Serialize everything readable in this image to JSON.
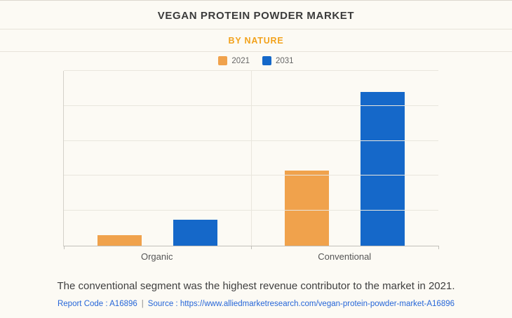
{
  "page": {
    "title": "VEGAN PROTEIN POWDER MARKET",
    "subtitle": "BY NATURE",
    "note": "The conventional segment was the highest revenue contributor to the market in 2021.",
    "footer": {
      "report_code": "Report Code : A16896",
      "separator": "|",
      "source_prefix": "Source :",
      "source_url": "https://www.alliedmarketresearch.com/vegan-protein-powder-market-A16896"
    }
  },
  "colors": {
    "series_2021": "#f0a24c",
    "series_2031": "#1568c9",
    "subtitle_accent": "#f2a21c",
    "footer_link": "#2666d8"
  },
  "chart_data": {
    "type": "bar",
    "categories": [
      "Organic",
      "Conventional"
    ],
    "series": [
      {
        "name": "2021",
        "color": "#f0a24c",
        "values": [
          0.06,
          0.43
        ]
      },
      {
        "name": "2031",
        "color": "#1568c9",
        "values": [
          0.15,
          0.88
        ]
      }
    ],
    "title": "VEGAN PROTEIN POWDER MARKET",
    "subtitle": "BY NATURE",
    "xlabel": "",
    "ylabel": "",
    "ylim": [
      0,
      1
    ],
    "grid": true,
    "legend_position": "top",
    "y_axis_labels_visible": false
  }
}
